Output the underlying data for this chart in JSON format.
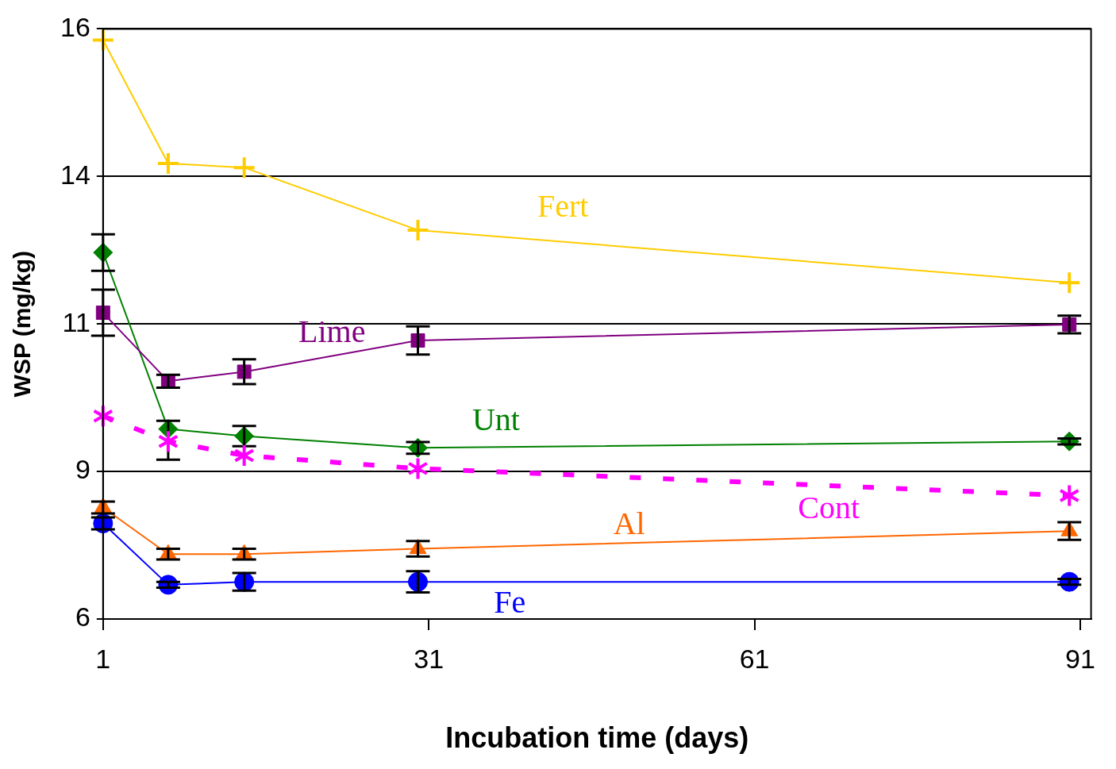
{
  "chart_data": {
    "type": "line",
    "xlabel": "Incubation time (days)",
    "ylabel": "WSP (mg/kg)",
    "xlim": [
      1,
      92
    ],
    "xticks": [
      1,
      31,
      61,
      91
    ],
    "ylim": [
      6,
      16
    ],
    "yticks": [
      6,
      {
        "value": 8.5,
        "label": "9"
      },
      11,
      {
        "value": 13.5,
        "label": "14"
      },
      16
    ],
    "grid": "y",
    "series": [
      {
        "name": "Fert",
        "color": "#ffcc00",
        "marker": "cross",
        "x": [
          1,
          7,
          14,
          30,
          90
        ],
        "values": [
          15.81,
          13.72,
          13.65,
          12.59,
          11.7
        ]
      },
      {
        "name": "Lime",
        "color": "#800080",
        "marker": "square",
        "x": [
          1,
          7,
          14,
          30,
          90
        ],
        "values": [
          11.19,
          10.03,
          10.19,
          10.72,
          10.99
        ],
        "errors": [
          0.39,
          0.11,
          0.21,
          0.24,
          0.15
        ]
      },
      {
        "name": "Unt",
        "color": "#008000",
        "marker": "diamond",
        "x": [
          1,
          7,
          14,
          30,
          90
        ],
        "values": [
          12.21,
          9.22,
          9.1,
          8.9,
          9.01
        ],
        "errors": [
          0.31,
          [
            8.7,
            9.36
          ],
          0.17,
          0.1,
          0.05
        ]
      },
      {
        "name": "Cont",
        "color": "#ff00ff",
        "marker": "star",
        "line_style": "dashed",
        "x": [
          1,
          7,
          14,
          30,
          90
        ],
        "values": [
          9.44,
          9.01,
          8.77,
          8.55,
          8.09
        ]
      },
      {
        "name": "Al",
        "color": "#ff6600",
        "marker": "triangle",
        "x": [
          1,
          7,
          14,
          30,
          90
        ],
        "values": [
          7.89,
          7.1,
          7.1,
          7.19,
          7.49
        ],
        "errors": [
          0.1,
          0.09,
          0.09,
          0.13,
          0.15
        ]
      },
      {
        "name": "Fe",
        "color": "#0000ff",
        "marker": "circle",
        "x": [
          1,
          7,
          14,
          30,
          90
        ],
        "values": [
          7.62,
          6.58,
          6.63,
          6.63,
          6.63
        ],
        "errors": [
          0.1,
          0.05,
          0.15,
          0.18,
          0.05
        ]
      }
    ]
  }
}
